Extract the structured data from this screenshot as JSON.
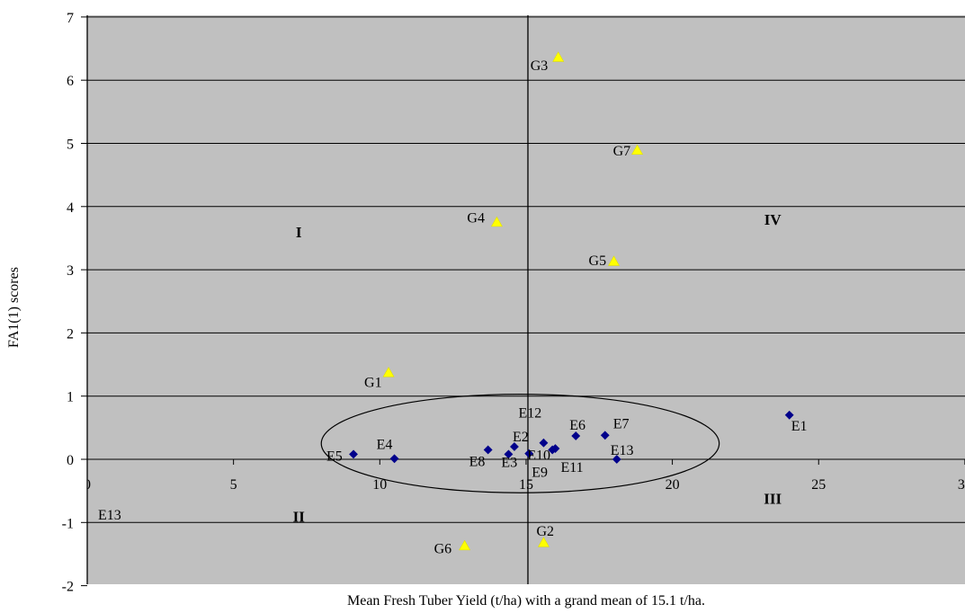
{
  "chart_data": {
    "type": "scatter",
    "title": "",
    "xlabel": "Mean Fresh Tuber Yield (t/ha) with a grand mean of 15.1 t/ha.",
    "ylabel": "FA1(1) scores",
    "xlim": [
      0,
      30
    ],
    "ylim": [
      -2,
      7
    ],
    "x_ticks": [
      "0",
      "5",
      "10",
      "15",
      "20",
      "25",
      "30"
    ],
    "y_ticks": [
      "-2",
      "-1",
      "0",
      "1",
      "2",
      "3",
      "4",
      "5",
      "6",
      "7"
    ],
    "grid": "horizontal",
    "reference_line_x": 15.1,
    "quadrant_labels": [
      {
        "text": "I",
        "x": 6.8,
        "y": 3.6
      },
      {
        "text": "II",
        "x": 6.8,
        "y": -0.9
      },
      {
        "text": "III",
        "x": 23.0,
        "y": -0.62
      },
      {
        "text": "IV",
        "x": 23.0,
        "y": 3.8
      }
    ],
    "ellipse": {
      "cx": 14.8,
      "cy": 0.25,
      "rx": 6.8,
      "ry": 0.78
    },
    "series": [
      {
        "marker": "diamond",
        "color": "#00008B",
        "points": [
          {
            "label": "E1",
            "x": 24.0,
            "y": 0.7
          },
          {
            "label": "E2",
            "x": 14.6,
            "y": 0.2
          },
          {
            "label": "E3",
            "x": 14.4,
            "y": 0.08
          },
          {
            "label": "E4",
            "x": 10.5,
            "y": 0.01
          },
          {
            "label": "E5",
            "x": 9.1,
            "y": 0.08
          },
          {
            "label": "E6",
            "x": 16.7,
            "y": 0.37
          },
          {
            "label": "E7",
            "x": 17.7,
            "y": 0.38
          },
          {
            "label": "E8",
            "x": 13.7,
            "y": 0.15
          },
          {
            "label": "E9",
            "x": 15.1,
            "y": 0.09
          },
          {
            "label": "E10",
            "x": 15.9,
            "y": 0.15
          },
          {
            "label": "E11",
            "x": 16.0,
            "y": 0.17
          },
          {
            "label": "E12",
            "x": 15.6,
            "y": 0.26
          },
          {
            "label": "E13",
            "x": 18.1,
            "y": 0.0
          }
        ]
      },
      {
        "marker": "triangle",
        "color": "#FFFF00",
        "points": [
          {
            "label": "G1",
            "x": 10.3,
            "y": 1.37
          },
          {
            "label": "G2",
            "x": 15.6,
            "y": -1.32
          },
          {
            "label": "G3",
            "x": 16.1,
            "y": 6.36
          },
          {
            "label": "G4",
            "x": 14.0,
            "y": 3.75
          },
          {
            "label": "G5",
            "x": 18.0,
            "y": 3.13
          },
          {
            "label": "G6",
            "x": 12.9,
            "y": -1.37
          },
          {
            "label": "G7",
            "x": 18.8,
            "y": 4.89
          }
        ]
      }
    ],
    "extra_labels": [
      {
        "text": "E13",
        "x": 0.4,
        "y": -0.87
      }
    ]
  }
}
